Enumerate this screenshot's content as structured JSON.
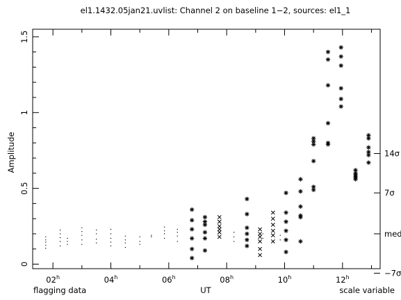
{
  "chart_data": {
    "type": "scatter",
    "title": "el1.1432.05jan21.uvlist: Channel 2 on baseline 1−2, sources: el1_1",
    "xlabel": "UT",
    "ylabel": "Amplitude",
    "xlim": [
      1.3,
      13.3
    ],
    "ylim": [
      -0.03,
      1.55
    ],
    "x_ticks": [
      {
        "value": 2,
        "label": "02",
        "sup": "h"
      },
      {
        "value": 4,
        "label": "04",
        "sup": "h"
      },
      {
        "value": 6,
        "label": "06",
        "sup": "h"
      },
      {
        "value": 8,
        "label": "08",
        "sup": "h"
      },
      {
        "value": 10,
        "label": "10",
        "sup": "h"
      },
      {
        "value": 12,
        "label": "12",
        "sup": "h"
      }
    ],
    "y_ticks": [
      {
        "value": 0,
        "label": "0"
      },
      {
        "value": 0.5,
        "label": "0.5"
      },
      {
        "value": 1,
        "label": "1"
      },
      {
        "value": 1.5,
        "label": "1.5"
      }
    ],
    "right_ticks": [
      {
        "value": 0.73,
        "label": "14σ"
      },
      {
        "value": 0.47,
        "label": "7σ"
      },
      {
        "value": 0.2,
        "label": "med"
      },
      {
        "value": -0.06,
        "label": "−7σ"
      }
    ],
    "bottom_left_label": "flagging data",
    "bottom_right_label": "scale variable",
    "grid": false,
    "series": [
      {
        "marker": "dot",
        "points": [
          [
            1.75,
            0.105
          ],
          [
            1.75,
            0.125
          ],
          [
            1.75,
            0.145
          ],
          [
            1.75,
            0.16
          ],
          [
            1.75,
            0.18
          ],
          [
            2.25,
            0.12
          ],
          [
            2.25,
            0.15
          ],
          [
            2.25,
            0.175
          ],
          [
            2.25,
            0.2
          ],
          [
            2.25,
            0.225
          ],
          [
            2.5,
            0.13
          ],
          [
            2.5,
            0.15
          ],
          [
            2.5,
            0.17
          ],
          [
            3.0,
            0.13
          ],
          [
            3.0,
            0.16
          ],
          [
            3.0,
            0.19
          ],
          [
            3.0,
            0.215
          ],
          [
            3.0,
            0.24
          ],
          [
            3.5,
            0.14
          ],
          [
            3.5,
            0.165
          ],
          [
            3.5,
            0.2
          ],
          [
            3.5,
            0.225
          ],
          [
            4.0,
            0.12
          ],
          [
            4.0,
            0.145
          ],
          [
            4.0,
            0.17
          ],
          [
            4.0,
            0.2
          ],
          [
            4.0,
            0.23
          ],
          [
            4.5,
            0.11
          ],
          [
            4.5,
            0.14
          ],
          [
            4.5,
            0.16
          ],
          [
            4.5,
            0.185
          ],
          [
            5.0,
            0.13
          ],
          [
            5.0,
            0.15
          ],
          [
            5.0,
            0.18
          ],
          [
            5.4,
            0.18
          ],
          [
            5.4,
            0.19
          ],
          [
            5.85,
            0.17
          ],
          [
            5.85,
            0.2
          ],
          [
            5.85,
            0.22
          ],
          [
            5.85,
            0.245
          ],
          [
            6.3,
            0.15
          ],
          [
            6.3,
            0.185
          ],
          [
            6.3,
            0.21
          ],
          [
            6.3,
            0.23
          ],
          [
            8.25,
            0.15
          ],
          [
            8.25,
            0.18
          ],
          [
            8.25,
            0.21
          ],
          [
            9.25,
            0.17
          ],
          [
            9.25,
            0.2
          ],
          [
            9.85,
            0.16
          ],
          [
            9.85,
            0.19
          ]
        ]
      },
      {
        "marker": "asterisk",
        "points": [
          [
            6.8,
            0.04
          ],
          [
            6.8,
            0.1
          ],
          [
            6.8,
            0.17
          ],
          [
            6.8,
            0.23
          ],
          [
            6.8,
            0.29
          ],
          [
            6.8,
            0.36
          ],
          [
            7.25,
            0.09
          ],
          [
            7.25,
            0.17
          ],
          [
            7.25,
            0.21
          ],
          [
            7.25,
            0.26
          ],
          [
            7.25,
            0.28
          ],
          [
            7.25,
            0.31
          ],
          [
            8.7,
            0.12
          ],
          [
            8.7,
            0.16
          ],
          [
            8.7,
            0.2
          ],
          [
            8.7,
            0.24
          ],
          [
            8.7,
            0.33
          ],
          [
            8.7,
            0.43
          ],
          [
            10.05,
            0.08
          ],
          [
            10.05,
            0.16
          ],
          [
            10.05,
            0.22
          ],
          [
            10.05,
            0.28
          ],
          [
            10.05,
            0.34
          ],
          [
            10.05,
            0.47
          ],
          [
            10.55,
            0.15
          ],
          [
            10.55,
            0.31
          ],
          [
            10.55,
            0.32
          ],
          [
            10.55,
            0.38
          ],
          [
            10.55,
            0.48
          ],
          [
            10.55,
            0.56
          ],
          [
            11.0,
            0.49
          ],
          [
            11.0,
            0.51
          ],
          [
            11.0,
            0.68
          ],
          [
            11.0,
            0.79
          ],
          [
            11.0,
            0.81
          ],
          [
            11.0,
            0.83
          ],
          [
            11.5,
            0.79
          ],
          [
            11.5,
            0.8
          ],
          [
            11.5,
            0.93
          ],
          [
            11.5,
            1.18
          ],
          [
            11.5,
            1.35
          ],
          [
            11.5,
            1.4
          ],
          [
            11.95,
            1.04
          ],
          [
            11.95,
            1.09
          ],
          [
            11.95,
            1.16
          ],
          [
            11.95,
            1.31
          ],
          [
            11.95,
            1.37
          ],
          [
            11.95,
            1.43
          ],
          [
            12.45,
            0.56
          ],
          [
            12.45,
            0.57
          ],
          [
            12.45,
            0.58
          ],
          [
            12.45,
            0.59
          ],
          [
            12.45,
            0.6
          ],
          [
            12.45,
            0.62
          ],
          [
            12.9,
            0.67
          ],
          [
            12.9,
            0.72
          ],
          [
            12.9,
            0.74
          ],
          [
            12.9,
            0.77
          ],
          [
            12.9,
            0.83
          ],
          [
            12.9,
            0.85
          ]
        ]
      },
      {
        "marker": "cross",
        "points": [
          [
            7.75,
            0.18
          ],
          [
            7.75,
            0.21
          ],
          [
            7.75,
            0.23
          ],
          [
            7.75,
            0.25
          ],
          [
            7.75,
            0.28
          ],
          [
            7.75,
            0.31
          ],
          [
            9.15,
            0.06
          ],
          [
            9.15,
            0.1
          ],
          [
            9.15,
            0.15
          ],
          [
            9.15,
            0.18
          ],
          [
            9.15,
            0.2
          ],
          [
            9.15,
            0.23
          ],
          [
            9.6,
            0.15
          ],
          [
            9.6,
            0.19
          ],
          [
            9.6,
            0.22
          ],
          [
            9.6,
            0.26
          ],
          [
            9.6,
            0.3
          ],
          [
            9.6,
            0.34
          ]
        ]
      }
    ]
  }
}
